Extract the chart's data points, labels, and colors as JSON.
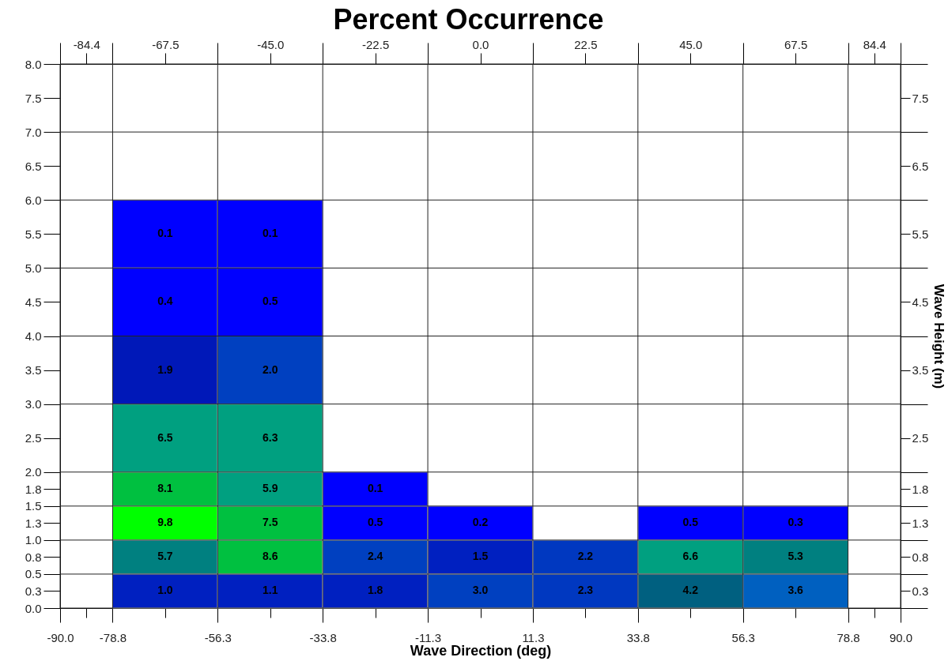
{
  "chart_data": {
    "type": "heatmap",
    "title": "Percent Occurrence",
    "xlabel": "Wave Direction (deg)",
    "ylabel": "Wave Height (m)",
    "categories": [
      "-84.4",
      "-67.5",
      "-45.0",
      "-22.5",
      "0.0",
      "22.5",
      "45.0",
      "67.5",
      "84.4"
    ],
    "y_categories": [
      "7.5",
      "6.5",
      "5.5",
      "4.5",
      "3.5",
      "2.5",
      "1.8",
      "1.3",
      "0.8",
      "0.3"
    ],
    "x2lim": [
      -90,
      90
    ],
    "x2ticks": [
      {
        "value": -90,
        "label": "-90.0"
      },
      {
        "value": -78.75,
        "label": "-78.8"
      },
      {
        "value": -56.25,
        "label": "-56.3"
      },
      {
        "value": -33.75,
        "label": "-33.8"
      },
      {
        "value": -11.25,
        "label": "-11.3"
      },
      {
        "value": 11.25,
        "label": "11.3"
      },
      {
        "value": 33.75,
        "label": "33.8"
      },
      {
        "value": 56.25,
        "label": "56.3"
      },
      {
        "value": 78.75,
        "label": "78.8"
      },
      {
        "value": 90,
        "label": "90.0"
      }
    ],
    "y2lim": [
      0,
      8
    ],
    "y2ticks": [
      {
        "value": 0,
        "label": "0.0"
      },
      {
        "value": 0.25,
        "label": "0.3"
      },
      0.5,
      {
        "value": 0.75,
        "label": "0.8"
      },
      {
        "value": 1,
        "label": "1.0"
      },
      {
        "value": 1.25,
        "label": "1.3"
      },
      1.5,
      {
        "value": 1.75,
        "label": "1.8"
      },
      {
        "value": 2,
        "label": "2.0"
      },
      2.5,
      {
        "value": 3,
        "label": "3.0"
      },
      3.5,
      {
        "value": 4,
        "label": "4.0"
      },
      4.5,
      {
        "value": 5,
        "label": "5.0"
      },
      5.5,
      {
        "value": 6,
        "label": "6.0"
      },
      6.5,
      {
        "value": 7,
        "label": "7.0"
      },
      7.5,
      {
        "value": 8,
        "label": "8.0"
      }
    ],
    "cells": [
      [
        null,
        null,
        null,
        null,
        null,
        null,
        null,
        null,
        null
      ],
      [
        null,
        null,
        null,
        null,
        null,
        null,
        null,
        null,
        null
      ],
      [
        null,
        0.1,
        0.1,
        null,
        null,
        null,
        null,
        null,
        null
      ],
      [
        null,
        0.4,
        0.5,
        null,
        null,
        null,
        null,
        null,
        null
      ],
      [
        null,
        1.9,
        2.0,
        null,
        null,
        null,
        null,
        null,
        null
      ],
      [
        null,
        6.5,
        6.3,
        null,
        null,
        null,
        null,
        null,
        null
      ],
      [
        null,
        8.1,
        5.9,
        0.1,
        null,
        null,
        null,
        null,
        null
      ],
      [
        null,
        9.8,
        7.5,
        0.5,
        0.2,
        null,
        0.5,
        0.3,
        null
      ],
      [
        null,
        5.7,
        8.6,
        2.4,
        1.5,
        2.2,
        6.6,
        5.3,
        null
      ],
      [
        null,
        1.0,
        1.1,
        1.8,
        3.0,
        2.3,
        4.2,
        3.6,
        null
      ]
    ],
    "cell_labels": [
      [
        null,
        null,
        null,
        null,
        null,
        null,
        null,
        null,
        null
      ],
      [
        null,
        null,
        null,
        null,
        null,
        null,
        null,
        null,
        null
      ],
      [
        null,
        "0.1",
        "0.1",
        null,
        null,
        null,
        null,
        null,
        null
      ],
      [
        null,
        "0.4",
        "0.5",
        null,
        null,
        null,
        null,
        null,
        null
      ],
      [
        null,
        "1.9",
        "2.0",
        null,
        null,
        null,
        null,
        null,
        null
      ],
      [
        null,
        "6.5",
        "6.3",
        null,
        null,
        null,
        null,
        null,
        null
      ],
      [
        null,
        "8.1",
        "5.9",
        "0.1",
        null,
        null,
        null,
        null,
        null
      ],
      [
        null,
        "9.8",
        "7.5",
        "0.5",
        "0.2",
        null,
        "0.5",
        "0.3",
        null
      ],
      [
        null,
        "5.7",
        "8.6",
        "2.4",
        "1.5",
        "2.2",
        "6.6",
        "5.3",
        null
      ],
      [
        null,
        "1.0",
        "1.1",
        "1.8",
        "3.0",
        "2.3",
        "4.2",
        "3.6",
        null
      ]
    ],
    "colors": [
      [
        null,
        null,
        null,
        null,
        null,
        null,
        null,
        null,
        null
      ],
      [
        null,
        null,
        null,
        null,
        null,
        null,
        null,
        null,
        null
      ],
      [
        null,
        "#0000ff",
        "#0000ff",
        null,
        null,
        null,
        null,
        null,
        null
      ],
      [
        null,
        "#0000ff",
        "#0000ff",
        null,
        null,
        null,
        null,
        null,
        null
      ],
      [
        null,
        "#0018b8",
        "#0040c0",
        null,
        null,
        null,
        null,
        null,
        null
      ],
      [
        null,
        "#00a080",
        "#00a080",
        null,
        null,
        null,
        null,
        null,
        null
      ],
      [
        null,
        "#00c040",
        "#00a080",
        "#0000ff",
        null,
        null,
        null,
        null,
        null
      ],
      [
        null,
        "#00ff00",
        "#00c040",
        "#0000ff",
        "#0000ff",
        null,
        "#0000ff",
        "#0000ff",
        null
      ],
      [
        null,
        "#008080",
        "#00c040",
        "#0040c0",
        "#0020c0",
        "#0038c0",
        "#00a080",
        "#008080",
        null
      ],
      [
        null,
        "#0020c0",
        "#0020c0",
        "#0020c0",
        "#0040c0",
        "#0038c0",
        "#006080",
        "#0060c0",
        null
      ]
    ],
    "grid": true
  }
}
